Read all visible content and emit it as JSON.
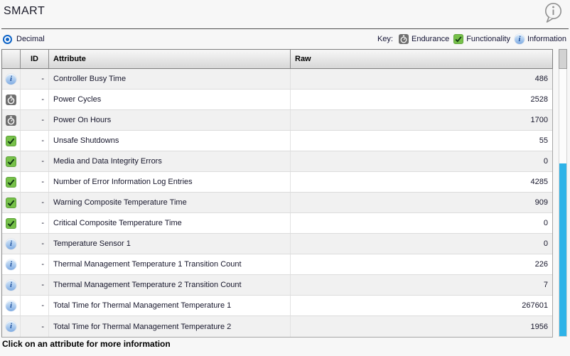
{
  "header": {
    "title": "SMART"
  },
  "controls": {
    "radio_label": "Decimal",
    "radio_selected": true,
    "key_label": "Key:",
    "legend": [
      {
        "icon": "endurance-icon",
        "label": "Endurance"
      },
      {
        "icon": "functionality-icon",
        "label": "Functionality"
      },
      {
        "icon": "information-icon",
        "label": "Information"
      }
    ]
  },
  "table": {
    "columns": [
      "",
      "ID",
      "Attribute",
      "Raw"
    ],
    "rows": [
      {
        "icon": "information",
        "id": "-",
        "attribute": "Controller Busy Time",
        "raw": "486"
      },
      {
        "icon": "endurance",
        "id": "-",
        "attribute": "Power Cycles",
        "raw": "2528"
      },
      {
        "icon": "endurance",
        "id": "-",
        "attribute": "Power On Hours",
        "raw": "1700"
      },
      {
        "icon": "functionality",
        "id": "-",
        "attribute": "Unsafe Shutdowns",
        "raw": "55"
      },
      {
        "icon": "functionality",
        "id": "-",
        "attribute": "Media and Data Integrity Errors",
        "raw": "0"
      },
      {
        "icon": "functionality",
        "id": "-",
        "attribute": "Number of Error Information Log Entries",
        "raw": "4285"
      },
      {
        "icon": "functionality",
        "id": "-",
        "attribute": "Warning Composite Temperature Time",
        "raw": "909"
      },
      {
        "icon": "functionality",
        "id": "-",
        "attribute": "Critical Composite Temperature Time",
        "raw": "0"
      },
      {
        "icon": "information",
        "id": "-",
        "attribute": "Temperature Sensor 1",
        "raw": "0"
      },
      {
        "icon": "information",
        "id": "-",
        "attribute": "Thermal Management Temperature 1 Transition Count",
        "raw": "226"
      },
      {
        "icon": "information",
        "id": "-",
        "attribute": "Thermal Management Temperature 2 Transition Count",
        "raw": "7"
      },
      {
        "icon": "information",
        "id": "-",
        "attribute": "Total Time for Thermal Management Temperature 1",
        "raw": "267601"
      },
      {
        "icon": "information",
        "id": "-",
        "attribute": "Total Time for Thermal Management Temperature 2",
        "raw": "1956"
      }
    ]
  },
  "footer": {
    "hint": "Click on an attribute for more information"
  },
  "colors": {
    "scrollbar_accent": "#2fb3e8",
    "endurance_gray": "#6f6f6f",
    "functionality_green": "#77c14a",
    "information_blue": "#9cc1ec",
    "radio_blue": "#0d63c6"
  }
}
